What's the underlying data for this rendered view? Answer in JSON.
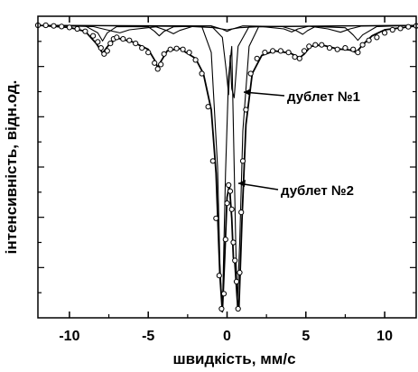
{
  "chart_data": {
    "type": "scatter",
    "title": "",
    "xlabel": "швидкість, мм/с",
    "ylabel": "інтенсивність, відн.од.",
    "xlim": [
      -12,
      12
    ],
    "ylim": [
      0.0,
      1.0
    ],
    "x_ticks": [
      -10,
      -5,
      0,
      5,
      10
    ],
    "x_tick_labels": [
      "-10",
      "-5",
      "0",
      "5",
      "10"
    ],
    "y_tick_labels_visible": false,
    "grid": false,
    "legend": "none",
    "annotations": [
      {
        "text": "дублет №1",
        "target_x": 0.8,
        "target_y": 0.73
      },
      {
        "text": "дублет №2",
        "target_x": 0.3,
        "target_y": 0.44
      }
    ],
    "series": [
      {
        "kind": "experimental_points",
        "x": [
          -12.0,
          -11.5,
          -11.0,
          -10.5,
          -10.0,
          -9.5,
          -9.0,
          -8.5,
          -8.2,
          -8.0,
          -7.8,
          -7.6,
          -7.4,
          -7.2,
          -7.0,
          -6.6,
          -6.2,
          -5.8,
          -5.4,
          -5.0,
          -4.6,
          -4.4,
          -4.2,
          -4.0,
          -3.6,
          -3.2,
          -2.8,
          -2.4,
          -2.0,
          -1.6,
          -1.2,
          -0.9,
          -0.7,
          -0.5,
          -0.35,
          -0.2,
          -0.1,
          0.0,
          0.1,
          0.2,
          0.3,
          0.4,
          0.5,
          0.6,
          0.7,
          0.8,
          0.9,
          1.0,
          1.2,
          1.5,
          1.9,
          2.4,
          2.9,
          3.4,
          3.9,
          4.3,
          4.6,
          4.9,
          5.2,
          5.6,
          6.0,
          6.5,
          7.0,
          7.5,
          8.0,
          8.3,
          8.6,
          9.0,
          9.5,
          10.0,
          10.5,
          11.0,
          11.5,
          12.0
        ],
        "y": [
          0.97,
          0.97,
          0.968,
          0.966,
          0.963,
          0.958,
          0.95,
          0.935,
          0.915,
          0.895,
          0.875,
          0.885,
          0.91,
          0.925,
          0.93,
          0.925,
          0.92,
          0.91,
          0.895,
          0.88,
          0.845,
          0.825,
          0.84,
          0.875,
          0.89,
          0.893,
          0.89,
          0.88,
          0.855,
          0.81,
          0.7,
          0.52,
          0.33,
          0.14,
          0.03,
          0.08,
          0.26,
          0.38,
          0.44,
          0.42,
          0.36,
          0.25,
          0.19,
          0.12,
          0.03,
          0.15,
          0.35,
          0.52,
          0.69,
          0.81,
          0.86,
          0.88,
          0.885,
          0.885,
          0.88,
          0.865,
          0.86,
          0.885,
          0.9,
          0.905,
          0.905,
          0.895,
          0.89,
          0.895,
          0.89,
          0.88,
          0.905,
          0.92,
          0.93,
          0.945,
          0.955,
          0.96,
          0.965,
          0.968
        ]
      },
      {
        "kind": "fit_envelope",
        "x": [
          -12,
          -10,
          -9,
          -8.3,
          -7.9,
          -7.5,
          -7.0,
          -6.0,
          -5.0,
          -4.6,
          -4.4,
          -4.2,
          -3.8,
          -3,
          -2,
          -1.5,
          -1.0,
          -0.7,
          -0.45,
          -0.3,
          -0.15,
          0.0,
          0.15,
          0.3,
          0.4,
          0.5,
          0.65,
          0.75,
          0.95,
          1.2,
          1.6,
          2.2,
          3,
          4,
          4.6,
          4.9,
          5.3,
          6,
          7,
          7.8,
          8.2,
          8.6,
          9.2,
          10,
          12
        ],
        "y": [
          0.97,
          0.963,
          0.95,
          0.91,
          0.878,
          0.905,
          0.928,
          0.915,
          0.89,
          0.855,
          0.83,
          0.85,
          0.885,
          0.893,
          0.86,
          0.81,
          0.69,
          0.48,
          0.14,
          0.02,
          0.2,
          0.4,
          0.44,
          0.33,
          0.2,
          0.18,
          0.06,
          0.03,
          0.33,
          0.64,
          0.81,
          0.87,
          0.885,
          0.878,
          0.862,
          0.875,
          0.9,
          0.905,
          0.892,
          0.888,
          0.88,
          0.905,
          0.935,
          0.955,
          0.968
        ]
      },
      {
        "kind": "subspectrum_sextet_1",
        "x": [
          -12,
          -9,
          -8.2,
          -7.9,
          -7.6,
          -7.0,
          -5.0,
          -4.6,
          -4.3,
          -4.0,
          -3.4,
          -1.0,
          -0.3,
          0.0,
          0.3,
          1.0,
          3.5,
          4.4,
          4.8,
          5.1,
          5.6,
          7.5,
          8.0,
          8.3,
          8.6,
          9.5,
          12
        ],
        "y": [
          0.97,
          0.968,
          0.945,
          0.918,
          0.945,
          0.966,
          0.965,
          0.95,
          0.935,
          0.95,
          0.965,
          0.968,
          0.957,
          0.95,
          0.957,
          0.968,
          0.966,
          0.952,
          0.94,
          0.952,
          0.966,
          0.962,
          0.938,
          0.92,
          0.938,
          0.966,
          0.97
        ]
      },
      {
        "kind": "subspectrum_sextet_2",
        "x": [
          -12,
          -8.5,
          -7.4,
          -6.8,
          -6.2,
          -4.5,
          -3.8,
          -3.4,
          -3.0,
          -2.2,
          -0.8,
          0.0,
          0.8,
          2.2,
          3.6,
          4.1,
          4.5,
          5.2,
          6.4,
          7.2,
          7.8,
          8.5,
          12
        ],
        "y": [
          0.97,
          0.966,
          0.952,
          0.945,
          0.955,
          0.965,
          0.952,
          0.942,
          0.953,
          0.966,
          0.962,
          0.955,
          0.962,
          0.966,
          0.958,
          0.948,
          0.958,
          0.967,
          0.958,
          0.947,
          0.958,
          0.967,
          0.97
        ]
      },
      {
        "kind": "doublet_1",
        "x": [
          -12,
          -1.0,
          -0.3,
          -0.05,
          0.1,
          0.2,
          0.3,
          0.45,
          0.7,
          1.4,
          12
        ],
        "y": [
          0.97,
          0.968,
          0.93,
          0.82,
          0.74,
          0.87,
          0.76,
          0.73,
          0.9,
          0.966,
          0.97
        ]
      },
      {
        "kind": "doublet_2",
        "x": [
          -12,
          -1.6,
          -1.0,
          -0.6,
          -0.45,
          -0.3,
          -0.1,
          0.1,
          0.3,
          0.45,
          0.55,
          0.65,
          0.8,
          1.0,
          1.4,
          2.0,
          12
        ],
        "y": [
          0.97,
          0.966,
          0.88,
          0.5,
          0.18,
          0.02,
          0.48,
          0.8,
          0.9,
          0.5,
          0.25,
          0.04,
          0.25,
          0.62,
          0.9,
          0.965,
          0.97
        ]
      }
    ]
  }
}
